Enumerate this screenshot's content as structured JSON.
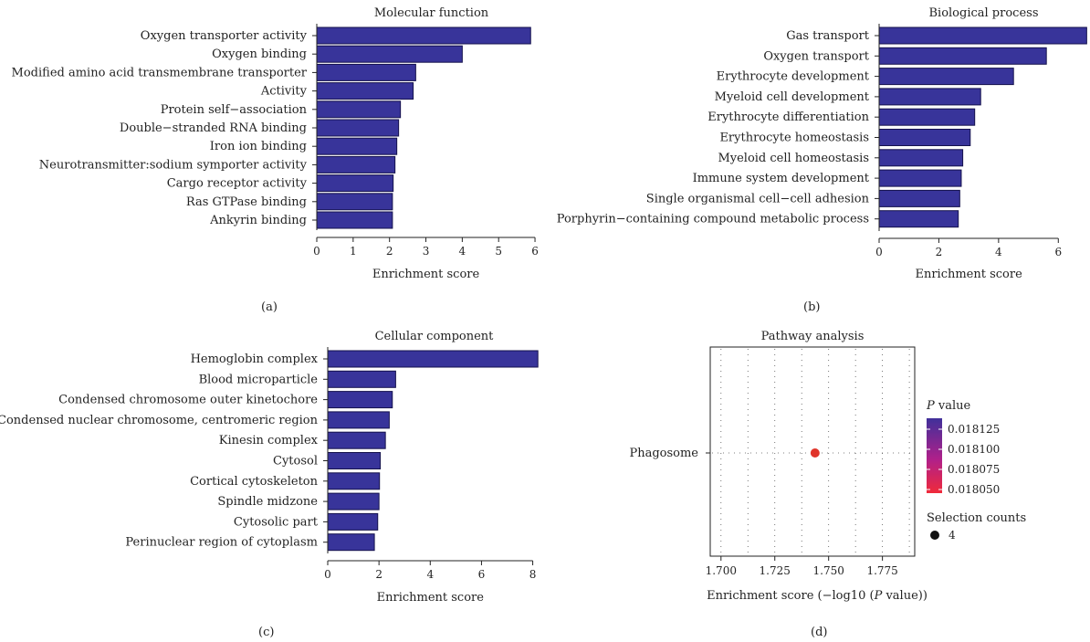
{
  "chart_data": [
    {
      "type": "bar",
      "orientation": "horizontal",
      "title": "Molecular function",
      "xlabel": "Enrichment score",
      "panel_label": "(a)",
      "xlim": [
        0,
        6.3
      ],
      "xticks": [
        0,
        1,
        2,
        3,
        4,
        5,
        6
      ],
      "categories": [
        "Oxygen transporter activity",
        "Oxygen binding",
        "Modified amino acid transmembrane transporter",
        "Activity",
        "Protein self−association",
        "Double−stranded RNA binding",
        "Iron ion binding",
        "Neurotransmitter:sodium symporter activity",
        "Cargo receptor activity",
        "Ras GTPase binding",
        "Ankyrin binding"
      ],
      "values": [
        5.88,
        4.0,
        2.72,
        2.65,
        2.3,
        2.25,
        2.2,
        2.15,
        2.1,
        2.08,
        2.08
      ],
      "color": "#38349a"
    },
    {
      "type": "bar",
      "orientation": "horizontal",
      "title": "Biological process",
      "xlabel": "Enrichment score",
      "panel_label": "(b)",
      "xlim": [
        0,
        7.0
      ],
      "xticks": [
        0,
        2,
        4,
        6
      ],
      "categories": [
        "Gas transport",
        "Oxygen transport",
        "Erythrocyte development",
        "Myeloid cell development",
        "Erythrocyte differentiation",
        "Erythrocyte homeostasis",
        "Myeloid cell homeostasis",
        "Immune system development",
        "Single organismal cell−cell adhesion",
        "Porphyrin−containing compound metabolic process"
      ],
      "values": [
        6.95,
        5.6,
        4.5,
        3.4,
        3.2,
        3.05,
        2.8,
        2.75,
        2.7,
        2.65
      ],
      "color": "#38349a"
    },
    {
      "type": "bar",
      "orientation": "horizontal",
      "title": "Cellular component",
      "xlabel": "Enrichment score",
      "panel_label": "(c)",
      "xlim": [
        0,
        8.3
      ],
      "xticks": [
        0,
        2,
        4,
        6,
        8
      ],
      "categories": [
        "Hemoglobin complex",
        "Blood microparticle",
        "Condensed chromosome outer kinetochore",
        "Condensed nuclear chromosome, centromeric region",
        "Kinesin complex",
        "Cytosol",
        "Cortical cytoskeleton",
        "Spindle midzone",
        "Cytosolic part",
        "Perinuclear region of cytoplasm"
      ],
      "values": [
        8.2,
        2.65,
        2.52,
        2.4,
        2.25,
        2.05,
        2.02,
        2.0,
        1.95,
        1.82
      ],
      "color": "#38349a"
    },
    {
      "type": "scatter",
      "title": "Pathway analysis",
      "xlabel_prefix": "Enrichment score (−log10 (",
      "xlabel_italic": "P",
      "xlabel_suffix": " value))",
      "panel_label": "(d)",
      "xlim": [
        1.695,
        1.79
      ],
      "xticks": [
        1.7,
        1.725,
        1.75,
        1.775
      ],
      "xtick_labels": [
        "1.700",
        "1.725",
        "1.750",
        "1.775"
      ],
      "categories": [
        "Phagosome"
      ],
      "points": [
        {
          "category": "Phagosome",
          "x": 1.7437,
          "p_value": 0.01805,
          "count": 4,
          "color": "#e0342a"
        }
      ],
      "legend": {
        "placement": "right",
        "color_title_italic": "P",
        "color_title_suffix": " value",
        "color_ticks": [
          "0.018125",
          "0.018100",
          "0.018075",
          "0.018050"
        ],
        "gradient_top": "#40309a",
        "gradient_bottom": "#f02a3a",
        "size_title": "Selection counts",
        "size_label": "4"
      },
      "grid": true
    }
  ]
}
